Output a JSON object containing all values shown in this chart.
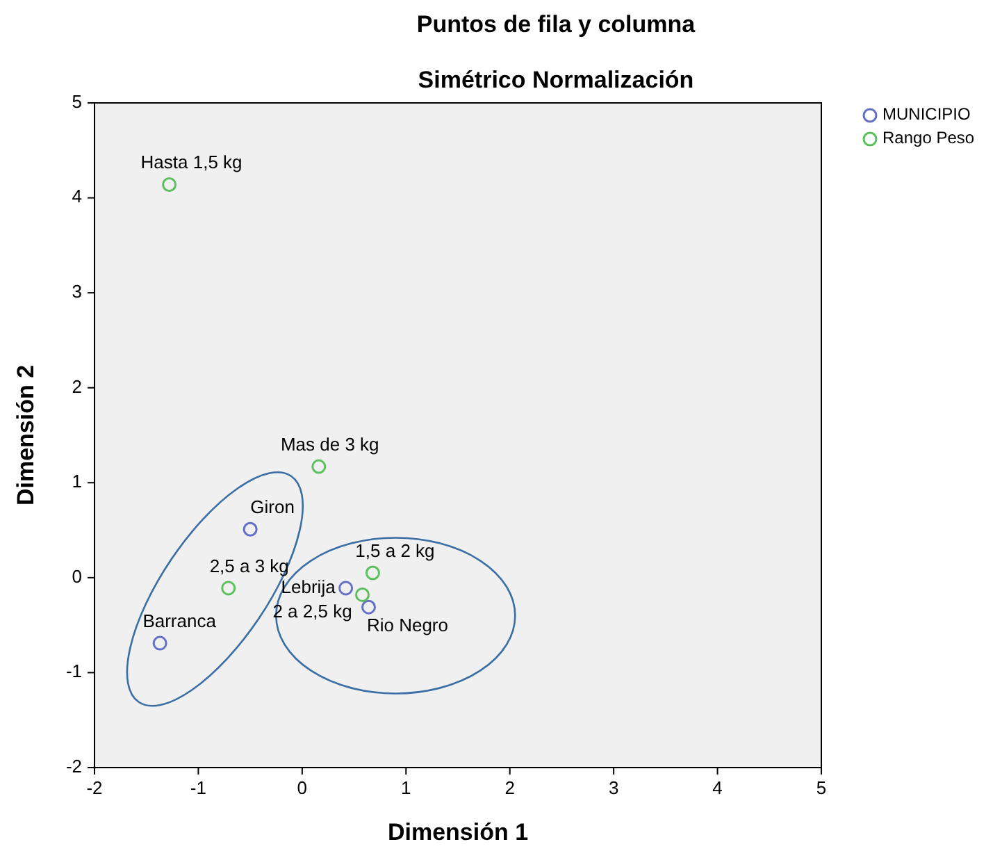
{
  "chart_data": {
    "type": "scatter",
    "title": "Puntos de fila y columna",
    "subtitle": "Simétrico Normalización",
    "xlabel": "Dimensión 1",
    "ylabel": "Dimensión 2",
    "xlim": [
      -2,
      5
    ],
    "ylim": [
      -2,
      5
    ],
    "xticks": [
      -2,
      -1,
      0,
      1,
      2,
      3,
      4,
      5
    ],
    "yticks": [
      -2,
      -1,
      0,
      1,
      2,
      3,
      4,
      5
    ],
    "grid": false,
    "legend": "top right",
    "marker": "circle",
    "series": [
      {
        "name": "MUNICIPIO",
        "color": "#6470c8",
        "x": [
          -0.5,
          -1.37,
          0.42,
          0.64
        ],
        "values": [
          0.51,
          -0.69,
          -0.11,
          -0.31
        ],
        "value_labels": [
          "Giron",
          "Barranca",
          "Lebrija",
          "Rio Negro"
        ]
      },
      {
        "name": "Rango Peso",
        "color": "#5cc05c",
        "x": [
          -1.28,
          0.16,
          -0.71,
          0.68,
          0.58
        ],
        "values": [
          4.14,
          1.17,
          -0.11,
          0.05,
          -0.18
        ],
        "value_labels": [
          "Hasta 1,5 kg",
          "Mas de 3 kg",
          "2,5 a 3 kg",
          "1,5 a 2 kg",
          "2 a 2,5 kg"
        ]
      }
    ]
  }
}
